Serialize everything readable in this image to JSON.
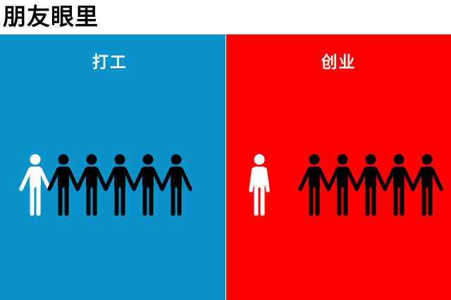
{
  "title": "朋友眼里",
  "panels": [
    {
      "label": "打工",
      "background": "#0b93c9",
      "people": {
        "total": 6,
        "highlighted": 1,
        "highlight_color": "#ffffff",
        "others_color": "#000000",
        "highlighted_separate": false
      }
    },
    {
      "label": "创业",
      "background": "#ff0000",
      "people": {
        "total": 6,
        "highlighted": 1,
        "highlight_color": "#ffffff",
        "others_color": "#000000",
        "highlighted_separate": true
      }
    }
  ]
}
